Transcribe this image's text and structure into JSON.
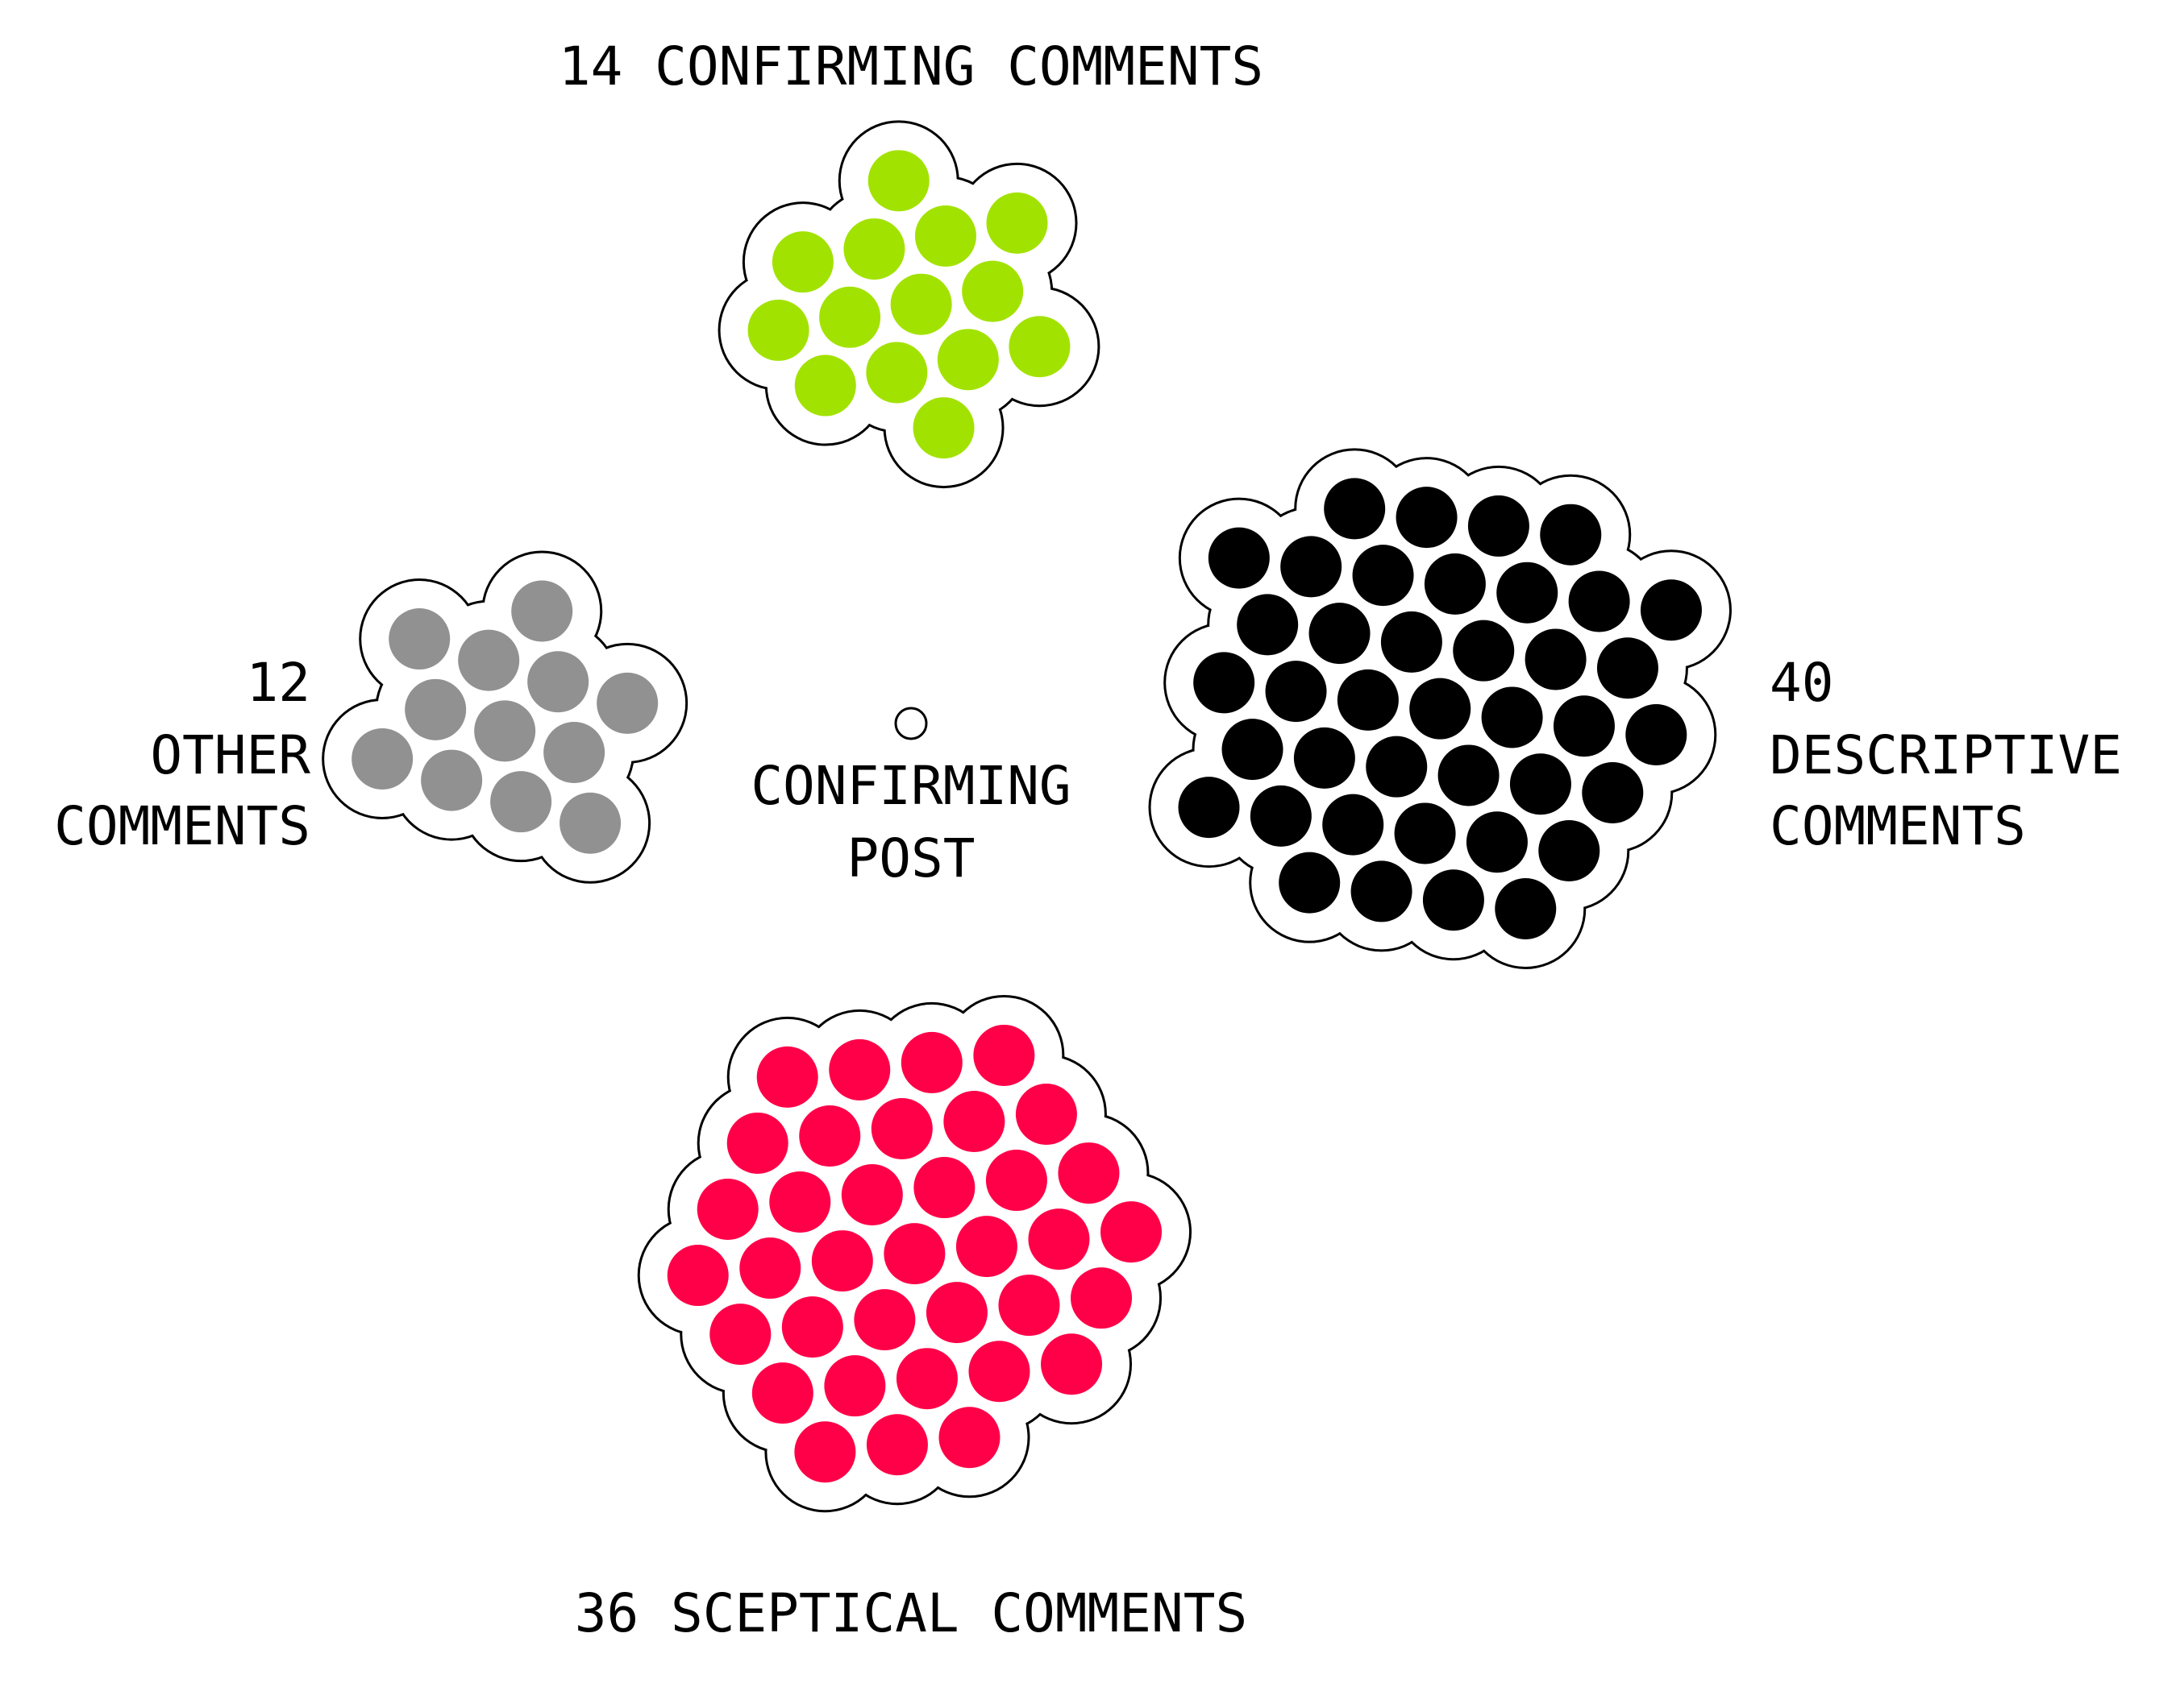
{
  "center": {
    "lines": [
      "CONFIRMING",
      "POST"
    ],
    "marker_color": "#ffffff"
  },
  "clusters": [
    {
      "id": "confirming",
      "count": 14,
      "lines": [
        "14 CONFIRMING COMMENTS"
      ],
      "color": "#a2e200"
    },
    {
      "id": "other",
      "count": 12,
      "lines": [
        "12",
        "OTHER",
        "COMMENTS"
      ],
      "color": "#919191"
    },
    {
      "id": "descriptive",
      "count": 40,
      "lines": [
        "40",
        "DESCRIPTIVE",
        "COMMENTS"
      ],
      "color": "#000000"
    },
    {
      "id": "sceptical",
      "count": 36,
      "lines": [
        "36 SCEPTICAL COMMENTS"
      ],
      "color": "#ff0048"
    }
  ]
}
